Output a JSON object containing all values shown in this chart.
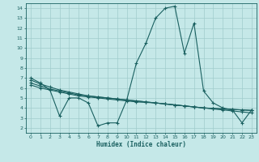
{
  "title": "",
  "xlabel": "Humidex (Indice chaleur)",
  "bg_color": "#c5e8e8",
  "grid_color": "#a0cccc",
  "line_color": "#1a6060",
  "xlim": [
    -0.5,
    23.5
  ],
  "ylim": [
    1.5,
    14.5
  ],
  "xticks": [
    0,
    1,
    2,
    3,
    4,
    5,
    6,
    7,
    8,
    9,
    10,
    11,
    12,
    13,
    14,
    15,
    16,
    17,
    18,
    19,
    20,
    21,
    22,
    23
  ],
  "yticks": [
    2,
    3,
    4,
    5,
    6,
    7,
    8,
    9,
    10,
    11,
    12,
    13,
    14
  ],
  "line0_x": [
    0,
    1,
    2,
    3,
    4,
    5,
    6,
    7,
    8,
    9,
    10,
    11,
    12,
    13,
    14,
    15,
    16,
    17,
    18,
    19,
    20,
    21,
    22,
    23
  ],
  "line0_y": [
    7.0,
    6.5,
    5.8,
    3.2,
    5.0,
    5.0,
    4.5,
    2.2,
    2.5,
    2.5,
    4.8,
    8.5,
    10.5,
    13.0,
    14.0,
    14.2,
    9.5,
    12.5,
    5.7,
    4.5,
    4.0,
    3.8,
    2.5,
    3.8
  ],
  "line1_x": [
    0,
    1,
    2,
    3,
    4,
    5,
    6,
    7,
    8,
    9,
    10,
    11,
    12,
    13,
    14,
    15,
    16,
    17,
    18,
    19,
    20,
    21,
    22,
    23
  ],
  "line1_y": [
    6.8,
    6.4,
    6.1,
    5.8,
    5.6,
    5.4,
    5.2,
    5.1,
    5.0,
    4.9,
    4.8,
    4.7,
    4.6,
    4.5,
    4.4,
    4.3,
    4.2,
    4.1,
    4.0,
    3.9,
    3.8,
    3.7,
    3.6,
    3.5
  ],
  "line2_x": [
    0,
    1,
    2,
    3,
    4,
    5,
    6,
    7,
    8,
    9,
    10,
    11,
    12,
    13,
    14,
    15,
    16,
    17,
    18,
    19,
    20,
    21,
    22,
    23
  ],
  "line2_y": [
    6.5,
    6.2,
    5.9,
    5.7,
    5.5,
    5.3,
    5.2,
    5.1,
    5.0,
    4.9,
    4.8,
    4.7,
    4.6,
    4.5,
    4.4,
    4.3,
    4.2,
    4.1,
    4.0,
    3.95,
    3.9,
    3.85,
    3.8,
    3.75
  ],
  "line3_x": [
    0,
    1,
    2,
    3,
    4,
    5,
    6,
    7,
    8,
    9,
    10,
    11,
    12,
    13,
    14,
    15,
    16,
    17,
    18,
    19,
    20,
    21,
    22,
    23
  ],
  "line3_y": [
    6.3,
    6.0,
    5.8,
    5.6,
    5.4,
    5.2,
    5.1,
    5.0,
    4.9,
    4.8,
    4.7,
    4.6,
    4.55,
    4.5,
    4.4,
    4.3,
    4.2,
    4.1,
    4.0,
    3.95,
    3.9,
    3.85,
    3.8,
    3.75
  ]
}
